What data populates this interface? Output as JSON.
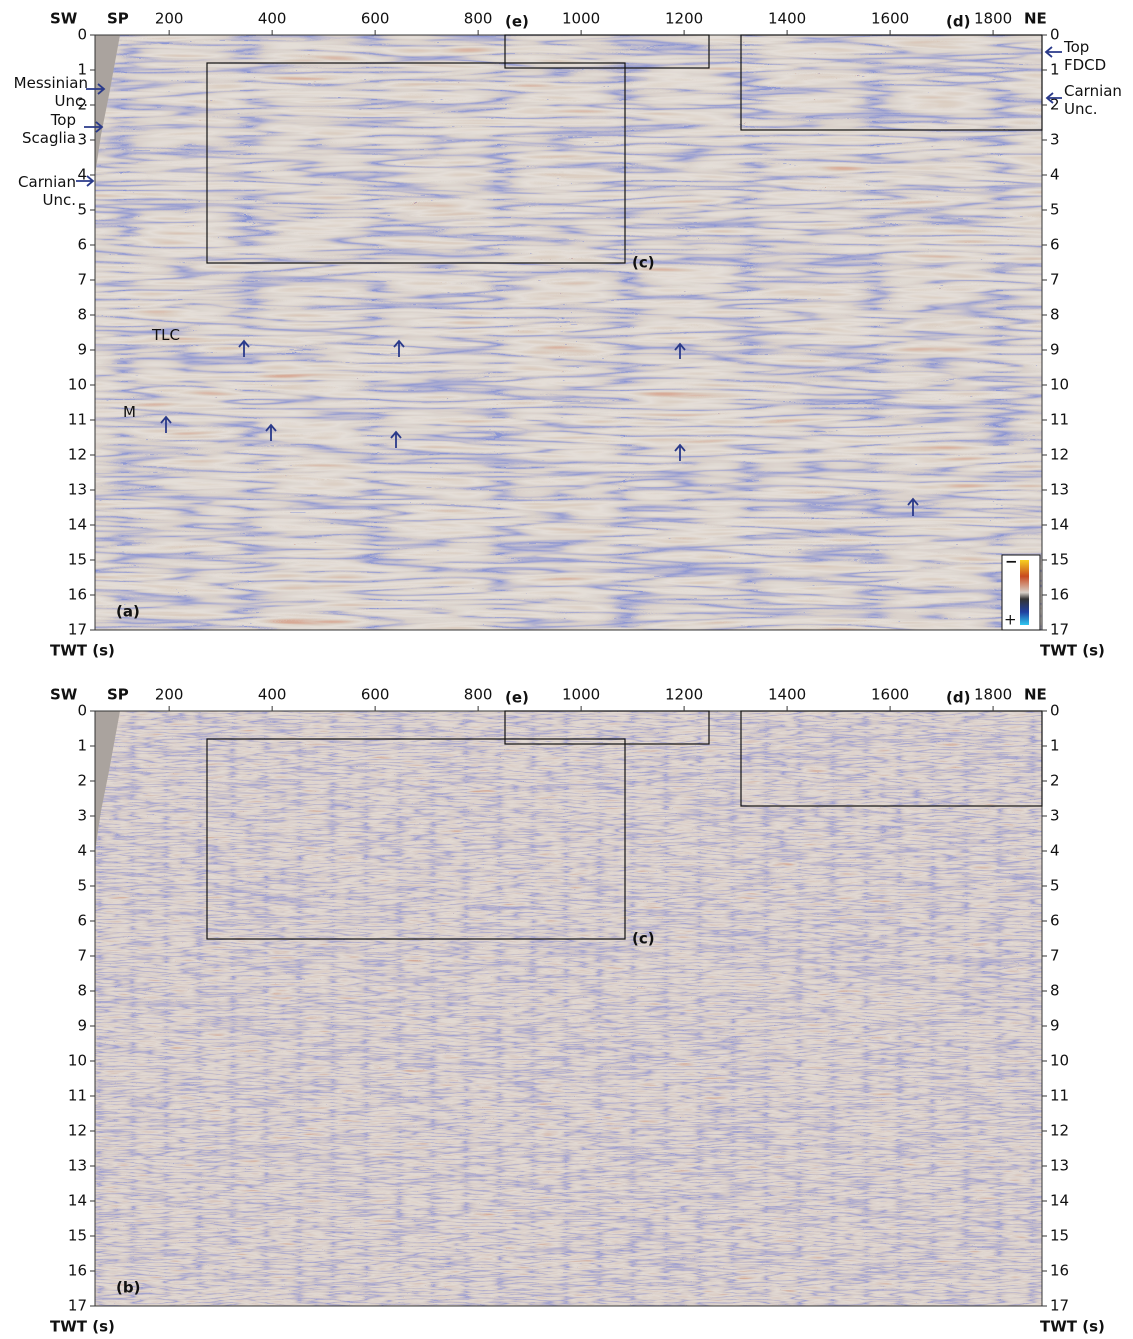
{
  "chart_data": [
    {
      "type": "seismic-section",
      "panel_label": "(a)",
      "x_label_left": "SW",
      "x_label": "SP",
      "x_label_right": "NE",
      "y_label_left": "TWT (s)",
      "y_label_right": "TWT (s)",
      "xlim": [
        56,
        1895
      ],
      "xticks": [
        200,
        400,
        600,
        800,
        1000,
        1200,
        1400,
        1600,
        1800
      ],
      "ylim": [
        0,
        17
      ],
      "yticks": [
        0,
        1,
        2,
        3,
        4,
        5,
        6,
        7,
        8,
        9,
        10,
        11,
        12,
        13,
        14,
        15,
        16,
        17
      ],
      "box_labels": [
        "(c)",
        "(d)",
        "(e)"
      ],
      "annotations": [
        "Messinian Unc.",
        "Top Scaglia",
        "Carnian Unc.",
        "Top FDCD",
        "Carnian Unc.",
        "TLC",
        "M"
      ],
      "colorbar_labels": [
        "−",
        "+"
      ]
    },
    {
      "type": "seismic-section",
      "panel_label": "(b)",
      "x_label_left": "SW",
      "x_label": "SP",
      "x_label_right": "NE",
      "y_label_left": "TWT (s)",
      "y_label_right": "TWT (s)",
      "xlim": [
        56,
        1895
      ],
      "xticks": [
        200,
        400,
        600,
        800,
        1000,
        1200,
        1400,
        1600,
        1800
      ],
      "ylim": [
        0,
        17
      ],
      "yticks": [
        0,
        1,
        2,
        3,
        4,
        5,
        6,
        7,
        8,
        9,
        10,
        11,
        12,
        13,
        14,
        15,
        16,
        17
      ],
      "box_labels": [
        "(c)",
        "(d)",
        "(e)"
      ]
    }
  ]
}
